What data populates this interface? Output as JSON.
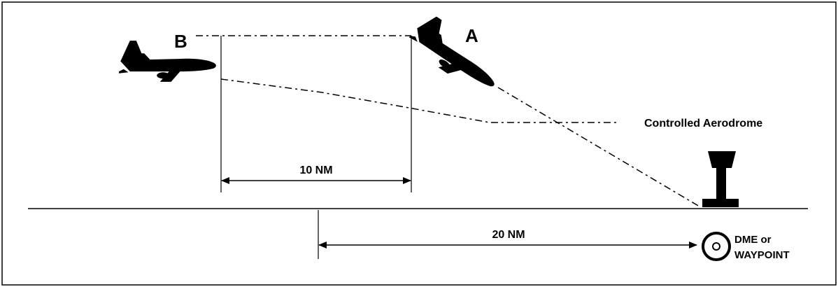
{
  "diagram": {
    "aircraft_a": {
      "label": "A"
    },
    "aircraft_b": {
      "label": "B"
    },
    "aerodrome_label": "Controlled Aerodrome",
    "separation_label": "10 NM",
    "distance_label": "20 NM",
    "dme_label_line1": "DME or",
    "dme_label_line2": "WAYPOINT",
    "colors": {
      "ink": "#000000",
      "background": "#ffffff"
    }
  }
}
